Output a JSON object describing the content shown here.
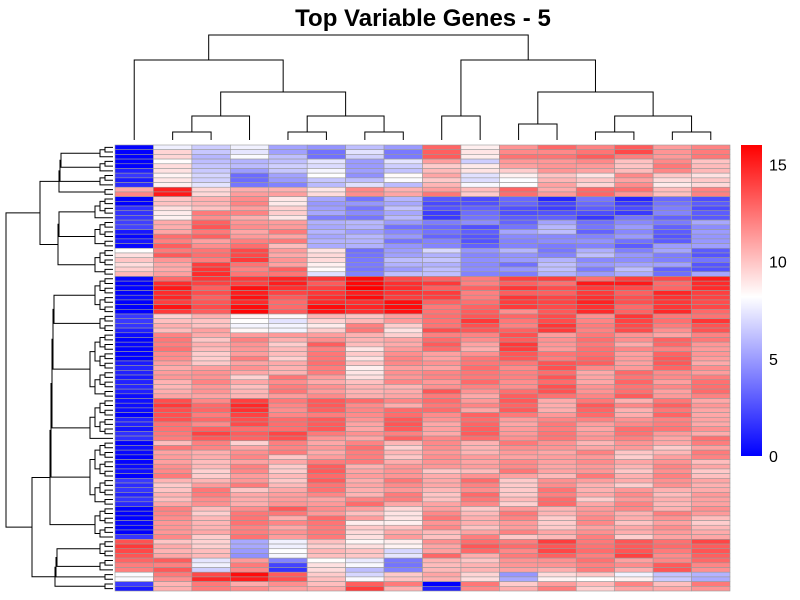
{
  "chart_data": {
    "type": "heatmap",
    "title": "Top Variable Genes - 5",
    "xlabel": "",
    "ylabel": "",
    "n_columns": 16,
    "n_rows": 92,
    "value_range": [
      0,
      16
    ],
    "colorbar": {
      "ticks": [
        0,
        5,
        10,
        15
      ],
      "colors": [
        "#0000ff",
        "#ffffff",
        "#ff0000"
      ],
      "midpoint": 8.2
    },
    "row_clusters": [
      {
        "rows": 3,
        "profile": [
          0.5,
          9,
          6,
          8,
          5,
          5,
          6,
          5,
          12.5,
          9,
          11.5,
          12.5,
          12.5,
          12.5,
          12.5,
          11.5
        ]
      },
      {
        "rows": 3,
        "profile": [
          0.5,
          8,
          7,
          5,
          7,
          7,
          6,
          6,
          11,
          8,
          10,
          11.5,
          11,
          11,
          11,
          10.5
        ]
      },
      {
        "rows": 3,
        "profile": [
          0.5,
          9,
          6,
          4,
          4,
          7,
          6,
          7,
          11,
          7,
          9,
          10,
          10,
          11,
          10,
          9
        ]
      },
      {
        "rows": 2,
        "profile": [
          12,
          14,
          10,
          11,
          10,
          10,
          11,
          11,
          11,
          11,
          12,
          12,
          12,
          12,
          11,
          12
        ]
      },
      {
        "rows": 5,
        "profile": [
          0.5,
          9,
          11,
          11,
          10,
          4,
          5,
          5,
          3,
          2.5,
          3,
          2.5,
          3,
          2.5,
          3,
          3
        ]
      },
      {
        "rows": 6,
        "profile": [
          1,
          12,
          12,
          12,
          11,
          6,
          5,
          5,
          3,
          4,
          4,
          5,
          4,
          4,
          4,
          4
        ]
      },
      {
        "rows": 6,
        "profile": [
          9,
          12,
          13.5,
          13,
          12,
          8,
          4,
          5,
          7,
          4,
          5,
          5,
          5,
          5,
          4,
          4
        ]
      },
      {
        "rows": 8,
        "profile": [
          0.5,
          14,
          14,
          14.5,
          14,
          14.5,
          15,
          15,
          13,
          13,
          13,
          14,
          14,
          14,
          14,
          14
        ]
      },
      {
        "rows": 4,
        "profile": [
          0.5,
          11,
          10,
          9,
          7,
          10,
          11,
          10,
          13,
          13,
          13,
          13,
          13,
          13,
          13,
          13
        ]
      },
      {
        "rows": 14,
        "profile": [
          0.5,
          11.5,
          11,
          11,
          11,
          12,
          10,
          11,
          12,
          12,
          13,
          12.5,
          12,
          12,
          12,
          12
        ]
      },
      {
        "rows": 9,
        "profile": [
          0.5,
          13,
          13,
          13.5,
          13,
          12,
          12,
          12,
          12,
          12,
          12,
          12,
          12,
          12,
          12,
          12
        ]
      },
      {
        "rows": 14,
        "profile": [
          0.5,
          11,
          11,
          11,
          11,
          12,
          11.5,
          11,
          11,
          11.5,
          11,
          11.5,
          11,
          11,
          11,
          11
        ]
      },
      {
        "rows": 7,
        "profile": [
          0.5,
          11,
          11,
          12,
          12,
          12,
          10,
          10,
          11,
          11,
          11,
          11,
          11,
          11,
          11,
          11
        ]
      },
      {
        "rows": 4,
        "profile": [
          13,
          11,
          9,
          6,
          7,
          11,
          9,
          8,
          12,
          12,
          13,
          13,
          13,
          13,
          13,
          13
        ]
      },
      {
        "rows": 3,
        "profile": [
          13,
          12,
          8,
          11,
          3,
          9,
          7,
          5,
          10,
          11,
          11,
          12,
          12,
          12,
          12,
          12
        ]
      },
      {
        "rows": 2,
        "profile": [
          8,
          12,
          14,
          15,
          14,
          9,
          8,
          9,
          11,
          9,
          6,
          8,
          9,
          9,
          6,
          6
        ]
      },
      {
        "rows": 2,
        "profile": [
          0.5,
          11,
          12,
          12,
          11,
          11,
          13,
          11,
          1,
          11,
          11,
          11,
          11,
          11,
          11,
          11
        ]
      }
    ]
  }
}
